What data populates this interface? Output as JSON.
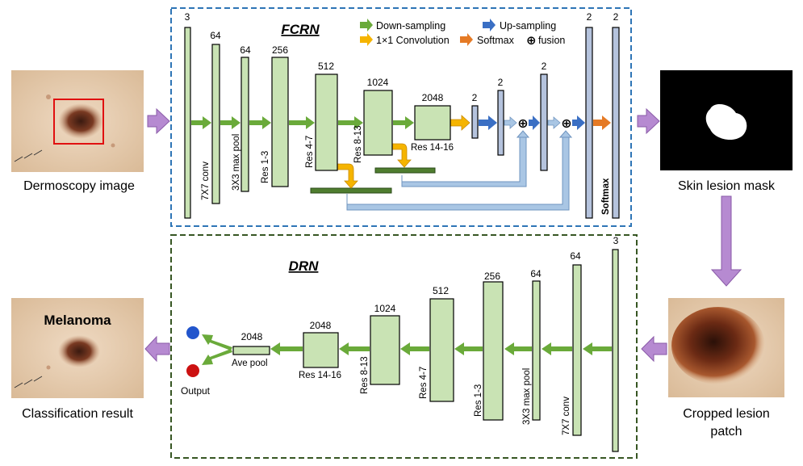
{
  "images": {
    "dermoscopy_caption": "Dermoscopy image",
    "mask_caption": "Skin lesion mask",
    "cropped_caption_line1": "Cropped lesion",
    "cropped_caption_line2": "patch",
    "classification_caption": "Classification result",
    "classification_label": "Melanoma"
  },
  "fcrn": {
    "title": "FCRN",
    "legend": {
      "down": "Down-sampling",
      "up": "Up-sampling",
      "conv": "1×1 Convolution",
      "softmax": "Softmax",
      "fusion": "fusion"
    },
    "layers": [
      {
        "channels": "3",
        "name": ""
      },
      {
        "channels": "64",
        "name": "7X7 conv"
      },
      {
        "channels": "64",
        "name": "3X3 max pool"
      },
      {
        "channels": "256",
        "name": "Res 1-3"
      },
      {
        "channels": "512",
        "name": "Res 4-7"
      },
      {
        "channels": "1024",
        "name": "Res 8-13"
      },
      {
        "channels": "2048",
        "name": "Res 14-16"
      },
      {
        "channels": "2",
        "name": ""
      },
      {
        "channels": "2",
        "name": ""
      },
      {
        "channels": "2",
        "name": ""
      },
      {
        "channels": "2",
        "name": ""
      },
      {
        "channels": "2",
        "name": "Softmax"
      }
    ]
  },
  "drn": {
    "title": "DRN",
    "layers": [
      {
        "channels": "3",
        "name": ""
      },
      {
        "channels": "64",
        "name": "7X7 conv"
      },
      {
        "channels": "64",
        "name": "3X3 max pool"
      },
      {
        "channels": "256",
        "name": "Res 1-3"
      },
      {
        "channels": "512",
        "name": "Res 4-7"
      },
      {
        "channels": "1024",
        "name": "Res 8-13"
      },
      {
        "channels": "2048",
        "name": "Res 14-16"
      },
      {
        "channels": "2048",
        "name": "Ave pool"
      }
    ],
    "output_label": "Output"
  },
  "colors": {
    "layer_fill": "#c9e3b4",
    "blue_layer_fill": "#b5c3dd",
    "dark_green_bar": "#4f7d2f",
    "down_arrow": "#6aaa3a",
    "up_arrow": "#3a6fc4",
    "conv_arrow": "#f5b400",
    "softmax_arrow": "#e57a25",
    "skip_line": "#a9c6e4",
    "purple_arrow": "#b68ad1",
    "fcrn_border": "#2e75b6",
    "drn_border": "#375623",
    "output_blue": "#2255cc",
    "output_red": "#cc1111"
  }
}
